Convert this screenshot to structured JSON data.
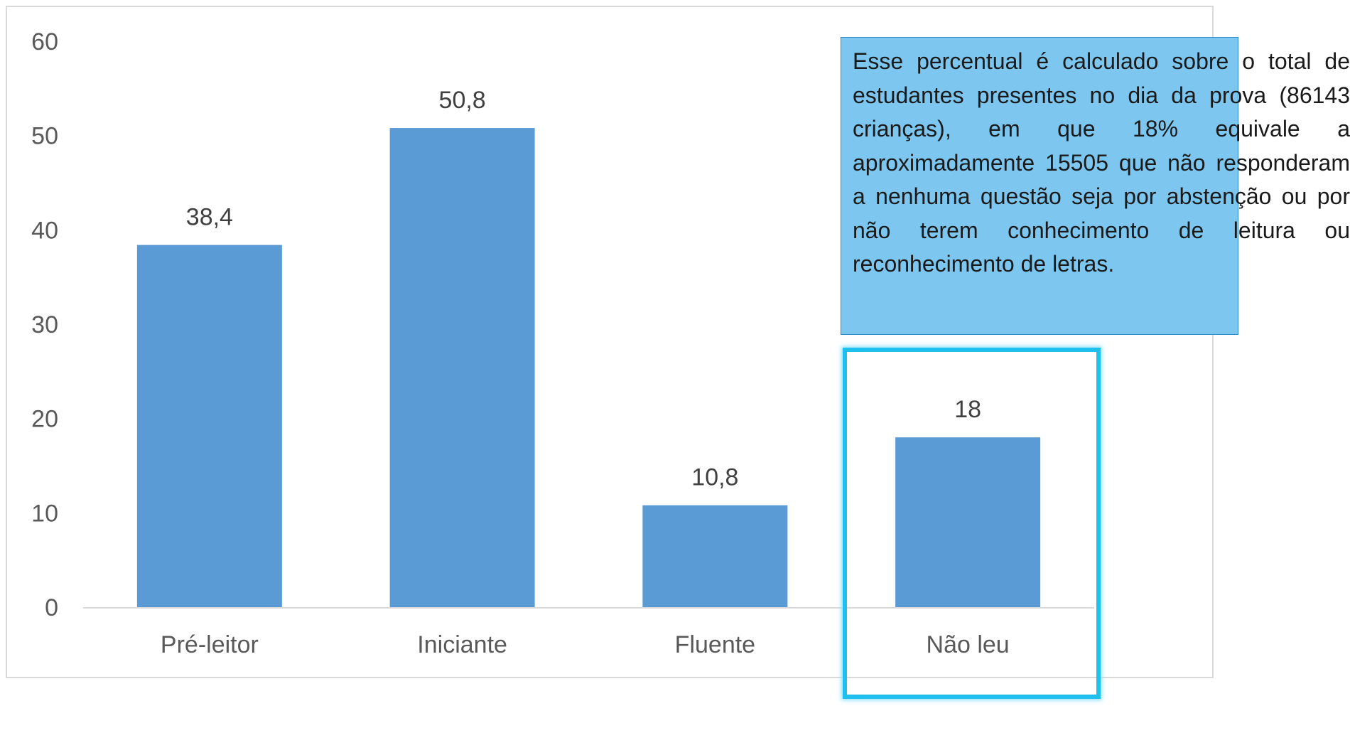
{
  "chart_data": {
    "type": "bar",
    "categories": [
      "Pré-leitor",
      "Iniciante",
      "Fluente",
      "Não leu"
    ],
    "values": [
      38.4,
      50.8,
      10.8,
      18
    ],
    "value_labels": [
      "38,4",
      "50,8",
      "10,8",
      "18"
    ],
    "yticks": [
      0,
      10,
      20,
      30,
      40,
      50,
      60
    ],
    "ylim": [
      0,
      60
    ],
    "grid": false,
    "bar_color": "#5b9bd5",
    "title": "",
    "xlabel": "",
    "ylabel": ""
  },
  "annotation": {
    "text": "Esse percentual é calculado sobre o total de estudantes presentes no dia da prova (86143 crianças), em que 18% equivale a aproximadamente 15505 que não responderam a nenhuma questão seja por abstenção ou por não terem conhecimento de leitura ou reconhecimento de letras.",
    "background": "#7cc6ef",
    "highlight_color": "#1fc0ee",
    "highlighted_category": "Não leu"
  }
}
